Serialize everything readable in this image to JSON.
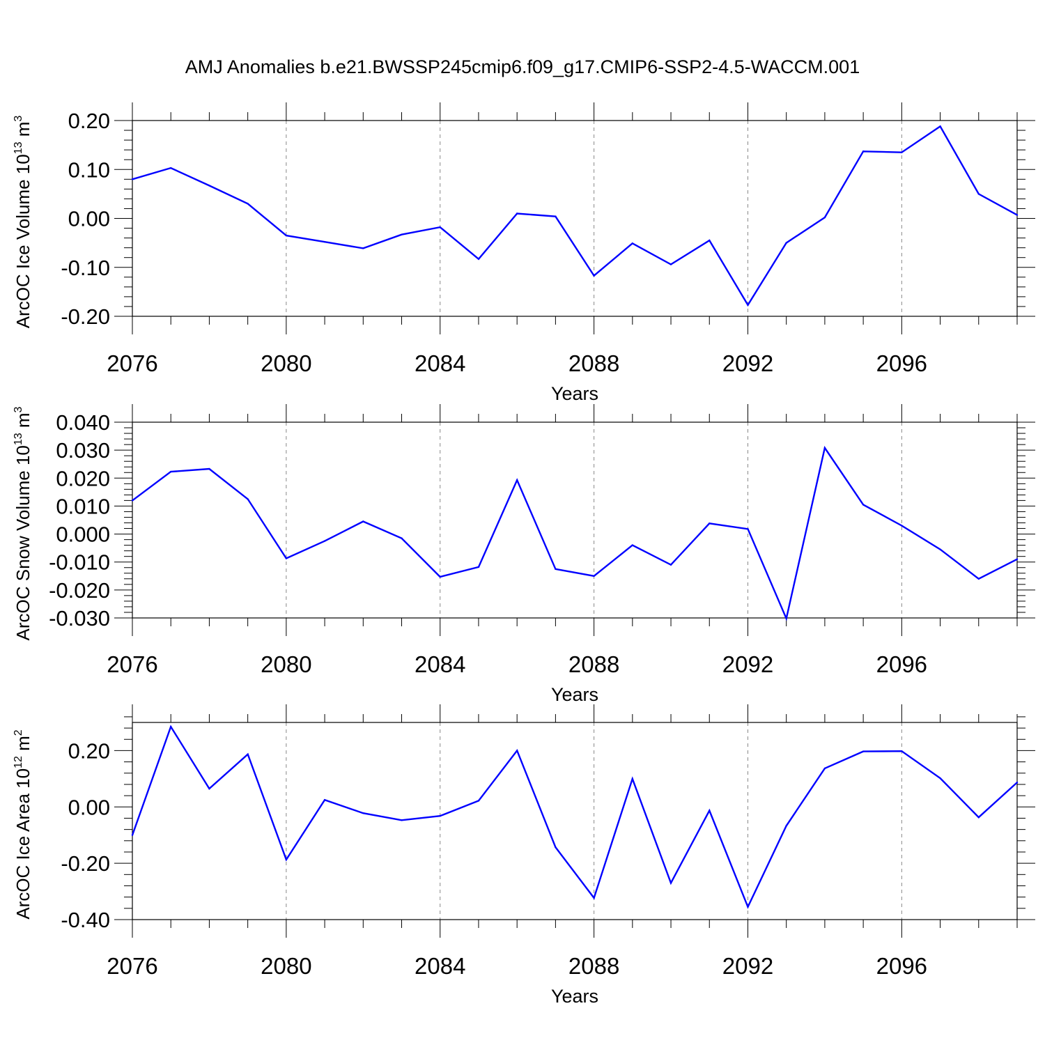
{
  "title": "AMJ Anomalies b.e21.BWSSP245cmip6.f09_g17.CMIP6-SSP2-4.5-WACCM.001",
  "colors": {
    "series": "#0000ff",
    "axes": "#000000",
    "grid": "#888888"
  },
  "chart_data": [
    {
      "type": "line",
      "ylabel": {
        "text": "ArcOC Ice Volume 10",
        "exp": "13",
        "unit": " m",
        "unit_exp": "3"
      },
      "xlabel": "Years",
      "x": [
        2076,
        2077,
        2078,
        2079,
        2080,
        2081,
        2082,
        2083,
        2084,
        2085,
        2086,
        2087,
        2088,
        2089,
        2090,
        2091,
        2092,
        2093,
        2094,
        2095,
        2096,
        2097,
        2098,
        2099
      ],
      "y": [
        0.08,
        0.103,
        0.067,
        0.03,
        -0.035,
        -0.048,
        -0.061,
        -0.033,
        -0.018,
        -0.083,
        0.01,
        0.004,
        -0.117,
        -0.051,
        -0.094,
        -0.045,
        -0.177,
        -0.05,
        0.002,
        0.137,
        0.135,
        0.188,
        0.05,
        0.007
      ],
      "xlim": [
        2076,
        2099
      ],
      "ylim": [
        -0.2,
        0.2
      ],
      "xticks": [
        "2076",
        "2080",
        "2084",
        "2088",
        "2092",
        "2096"
      ],
      "yticks": [
        "0.20",
        "0.10",
        "0.00",
        "-0.10",
        "-0.20"
      ],
      "ytick_values": [
        0.2,
        0.1,
        0.0,
        -0.1,
        -0.2
      ],
      "grid": "vertical dashed at major x ticks"
    },
    {
      "type": "line",
      "ylabel": {
        "text": "ArcOC Snow Volume 10",
        "exp": "13",
        "unit": " m",
        "unit_exp": "3"
      },
      "xlabel": "Years",
      "x": [
        2076,
        2077,
        2078,
        2079,
        2080,
        2081,
        2082,
        2083,
        2084,
        2085,
        2086,
        2087,
        2088,
        2089,
        2090,
        2091,
        2092,
        2093,
        2094,
        2095,
        2096,
        2097,
        2098,
        2099
      ],
      "y": [
        0.012,
        0.0223,
        0.0233,
        0.0125,
        -0.0087,
        -0.0025,
        0.0045,
        -0.0015,
        -0.0153,
        -0.0118,
        0.0193,
        -0.0125,
        -0.015,
        -0.004,
        -0.011,
        0.0038,
        0.0018,
        -0.0302,
        0.0308,
        0.0105,
        0.003,
        -0.0055,
        -0.016,
        -0.009
      ],
      "xlim": [
        2076,
        2099
      ],
      "ylim": [
        -0.03,
        0.04
      ],
      "xticks": [
        "2076",
        "2080",
        "2084",
        "2088",
        "2092",
        "2096"
      ],
      "yticks": [
        "0.040",
        "0.030",
        "0.020",
        "0.010",
        "0.000",
        "-0.010",
        "-0.020",
        "-0.030"
      ],
      "ytick_values": [
        0.04,
        0.03,
        0.02,
        0.01,
        0.0,
        -0.01,
        -0.02,
        -0.03
      ],
      "grid": "vertical dashed at major x ticks"
    },
    {
      "type": "line",
      "ylabel": {
        "text": "ArcOC Ice Area 10",
        "exp": "12",
        "unit": " m",
        "unit_exp": "2"
      },
      "xlabel": "Years",
      "x": [
        2076,
        2077,
        2078,
        2079,
        2080,
        2081,
        2082,
        2083,
        2084,
        2085,
        2086,
        2087,
        2088,
        2089,
        2090,
        2091,
        2092,
        2093,
        2094,
        2095,
        2096,
        2097,
        2098,
        2099
      ],
      "y": [
        -0.1,
        0.285,
        0.065,
        0.187,
        -0.187,
        0.025,
        -0.022,
        -0.047,
        -0.032,
        0.022,
        0.2,
        -0.143,
        -0.323,
        0.1,
        -0.27,
        -0.013,
        -0.355,
        -0.067,
        0.137,
        0.197,
        0.198,
        0.102,
        -0.037,
        0.087
      ],
      "xlim": [
        2076,
        2099
      ],
      "ylim": [
        -0.4,
        0.3
      ],
      "xticks": [
        "2076",
        "2080",
        "2084",
        "2088",
        "2092",
        "2096"
      ],
      "yticks": [
        "0.20",
        "0.00",
        "-0.20",
        "-0.40"
      ],
      "ytick_values": [
        0.2,
        0.0,
        -0.2,
        -0.4
      ],
      "grid": "vertical dashed at major x ticks"
    }
  ]
}
